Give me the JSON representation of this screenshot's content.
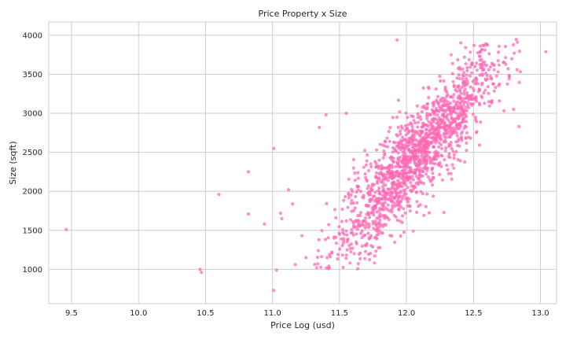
{
  "chart_data": {
    "type": "scatter",
    "title": "Price Property x Size",
    "xlabel": "Price Log (usd)",
    "ylabel": "Size  (sqft)",
    "xlim": [
      9.33,
      13.12
    ],
    "ylim": [
      560,
      4170
    ],
    "xticks": [
      9.5,
      10.0,
      10.5,
      11.0,
      11.5,
      12.0,
      12.5,
      13.0
    ],
    "xtick_labels": [
      "9.5",
      "10.0",
      "10.5",
      "11.0",
      "11.5",
      "12.0",
      "12.5",
      "13.0"
    ],
    "yticks": [
      1000,
      1500,
      2000,
      2500,
      3000,
      3500,
      4000
    ],
    "ytick_labels": [
      "1000",
      "1500",
      "2000",
      "2500",
      "3000",
      "3500",
      "4000"
    ],
    "grid": true,
    "point_color": "#ff69b4",
    "grid_color": "#cccccc",
    "frame_color": "#cccccc",
    "outliers": [
      {
        "x": 9.46,
        "y": 1510
      },
      {
        "x": 10.46,
        "y": 1000
      },
      {
        "x": 10.47,
        "y": 960
      },
      {
        "x": 10.6,
        "y": 1960
      },
      {
        "x": 10.82,
        "y": 2250
      },
      {
        "x": 10.82,
        "y": 1710
      },
      {
        "x": 10.94,
        "y": 1580
      },
      {
        "x": 11.01,
        "y": 2550
      },
      {
        "x": 11.01,
        "y": 730
      },
      {
        "x": 11.03,
        "y": 990
      },
      {
        "x": 11.06,
        "y": 1720
      },
      {
        "x": 11.07,
        "y": 1650
      },
      {
        "x": 11.12,
        "y": 2020
      },
      {
        "x": 11.15,
        "y": 1840
      },
      {
        "x": 11.17,
        "y": 1060
      },
      {
        "x": 11.22,
        "y": 1430
      },
      {
        "x": 11.25,
        "y": 1150
      },
      {
        "x": 11.33,
        "y": 1020
      },
      {
        "x": 11.35,
        "y": 2820
      },
      {
        "x": 11.4,
        "y": 2980
      },
      {
        "x": 12.84,
        "y": 2830
      },
      {
        "x": 12.05,
        "y": 1490
      },
      {
        "x": 12.28,
        "y": 1730
      },
      {
        "x": 11.93,
        "y": 3940
      },
      {
        "x": 13.04,
        "y": 3790
      },
      {
        "x": 11.55,
        "y": 3000
      }
    ],
    "cluster": {
      "n": 1500,
      "mean_x": 12.08,
      "std_x": 0.32,
      "intercept": -20500,
      "slope": 1900,
      "residual_std": 300,
      "x_range": [
        11.25,
        12.9
      ],
      "y_range": [
        1000,
        4000
      ]
    }
  }
}
